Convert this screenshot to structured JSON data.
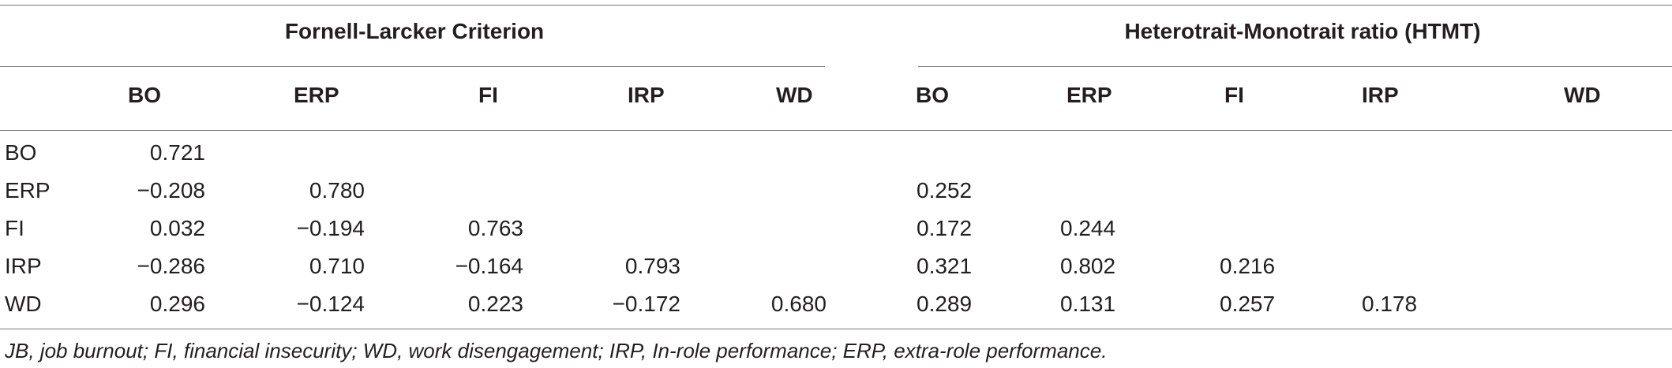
{
  "table": {
    "groups": [
      {
        "label": "Fornell-Larcker Criterion"
      },
      {
        "label": "Heterotrait-Monotrait ratio (HTMT)"
      }
    ],
    "columns": [
      "BO",
      "ERP",
      "FI",
      "IRP",
      "WD"
    ],
    "rows": [
      {
        "label": "BO",
        "fl": [
          "0.721",
          "",
          "",
          "",
          ""
        ],
        "htmt": [
          "",
          "",
          "",
          "",
          ""
        ]
      },
      {
        "label": "ERP",
        "fl": [
          "−0.208",
          "0.780",
          "",
          "",
          ""
        ],
        "htmt": [
          "0.252",
          "",
          "",
          "",
          ""
        ]
      },
      {
        "label": "FI",
        "fl": [
          "0.032",
          "−0.194",
          "0.763",
          "",
          ""
        ],
        "htmt": [
          "0.172",
          "0.244",
          "",
          "",
          ""
        ]
      },
      {
        "label": "IRP",
        "fl": [
          "−0.286",
          "0.710",
          "−0.164",
          "0.793",
          ""
        ],
        "htmt": [
          "0.321",
          "0.802",
          "0.216",
          "",
          ""
        ]
      },
      {
        "label": "WD",
        "fl": [
          "0.296",
          "−0.124",
          "0.223",
          "−0.172",
          "0.680"
        ],
        "htmt": [
          "0.289",
          "0.131",
          "0.257",
          "0.178",
          ""
        ]
      }
    ],
    "footnote": "JB, job burnout; FI, financial insecurity; WD, work disengagement; IRP, In-role performance; ERP, extra-role performance."
  }
}
